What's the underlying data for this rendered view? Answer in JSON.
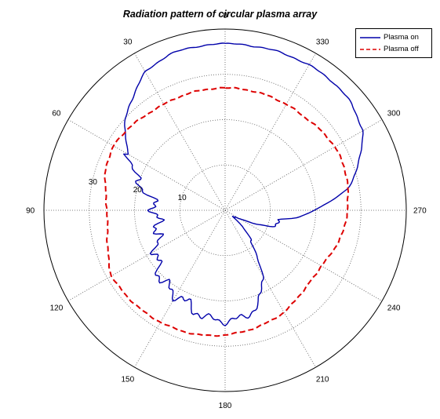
{
  "chart_data": {
    "type": "line",
    "coordinate_system": "polar",
    "title": "Radiation pattern of circular plasma array",
    "angle_tick_labels": [
      "0",
      "30",
      "60",
      "90",
      "120",
      "150",
      "180",
      "210",
      "240",
      "270",
      "300",
      "330"
    ],
    "radial_tick_labels": [
      "10",
      "20",
      "30"
    ],
    "radial_ticks": [
      10,
      20,
      30
    ],
    "rlim": [
      0,
      40
    ],
    "angle_zero_direction": "top",
    "angle_direction": "counterclockwise",
    "grid": true,
    "legend_position": "top-right",
    "series": [
      {
        "name": "Plasma on",
        "color": "#0000aa",
        "line_style": "solid",
        "theta_deg": [
          0,
          10,
          20,
          30,
          40,
          50,
          60,
          70,
          80,
          90,
          100,
          110,
          120,
          130,
          140,
          150,
          160,
          170,
          180,
          190,
          200,
          210,
          220,
          230,
          235,
          240,
          245,
          250,
          255,
          260,
          265,
          270,
          275,
          280,
          290,
          300,
          310,
          320,
          330,
          340,
          350,
          360
        ],
        "r": [
          36.7,
          36.7,
          36.5,
          35.2,
          32.0,
          29.0,
          24.5,
          21.0,
          16.5,
          15.5,
          15.0,
          15.8,
          17.5,
          19.5,
          21.0,
          21.5,
          22.5,
          24.0,
          24.5,
          24.0,
          22.0,
          16.0,
          9.0,
          3.0,
          2.5,
          3.0,
          7.0,
          10.5,
          11.5,
          12.5,
          16.5,
          19.5,
          23.5,
          27.5,
          31.5,
          35.0,
          36.5,
          37.0,
          37.0,
          36.9,
          36.8,
          36.7
        ]
      },
      {
        "name": "Plasma off",
        "color": "#dd0000",
        "line_style": "dashed",
        "theta_deg": [
          0,
          10,
          20,
          30,
          40,
          50,
          60,
          70,
          80,
          90,
          100,
          110,
          120,
          130,
          140,
          150,
          160,
          170,
          180,
          190,
          200,
          210,
          220,
          230,
          240,
          250,
          260,
          270,
          280,
          290,
          300,
          310,
          320,
          330,
          340,
          350,
          360
        ],
        "r": [
          27.0,
          27.0,
          27.0,
          27.0,
          27.3,
          28.0,
          28.4,
          28.0,
          26.8,
          26.0,
          26.3,
          27.5,
          29.0,
          28.8,
          28.7,
          28.5,
          28.3,
          28.0,
          27.5,
          27.0,
          26.5,
          26.0,
          25.0,
          24.5,
          24.5,
          25.5,
          26.5,
          27.0,
          27.5,
          28.0,
          28.0,
          27.5,
          27.0,
          27.0,
          27.0,
          27.0,
          27.0
        ]
      }
    ]
  }
}
